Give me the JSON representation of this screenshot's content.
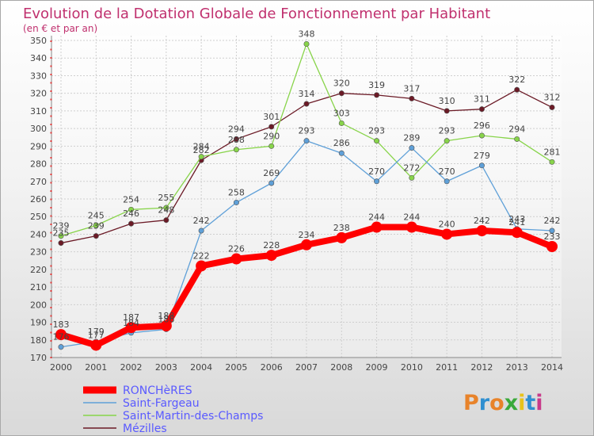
{
  "chart_data": {
    "type": "line",
    "title": "Evolution de la Dotation Globale de Fonctionnement par Habitant",
    "subtitle": "(en € et par an)",
    "x": [
      "2000",
      "2001",
      "2002",
      "2003",
      "2004",
      "2005",
      "2006",
      "2007",
      "2008",
      "2009",
      "2010",
      "2011",
      "2012",
      "2013",
      "2014"
    ],
    "ylim": [
      170,
      350
    ],
    "yticks": [
      170,
      180,
      190,
      200,
      210,
      220,
      230,
      240,
      250,
      260,
      270,
      280,
      290,
      300,
      310,
      320,
      330,
      340,
      350
    ],
    "grid": true,
    "series": [
      {
        "name": "RONCHèRES",
        "color": "#ff0000",
        "values": [
          183,
          177,
          187,
          188,
          222,
          226,
          228,
          234,
          238,
          244,
          244,
          240,
          242,
          241,
          233
        ]
      },
      {
        "name": "Saint-Fargeau",
        "color": "#5fa0d8",
        "values": [
          176,
          179,
          184,
          186,
          242,
          258,
          269,
          293,
          286,
          270,
          289,
          270,
          279,
          243,
          242
        ]
      },
      {
        "name": "Saint-Martin-des-Champs",
        "color": "#88d44a",
        "values": [
          239,
          245,
          254,
          255,
          284,
          288,
          290,
          348,
          303,
          293,
          272,
          293,
          296,
          294,
          281
        ]
      },
      {
        "name": "Mézilles",
        "color": "#6b1a26",
        "values": [
          235,
          239,
          246,
          248,
          282,
          294,
          301,
          314,
          320,
          319,
          317,
          310,
          311,
          322,
          312
        ]
      }
    ],
    "legend_position": "bottom-left"
  },
  "brand": {
    "text": "Proxiti"
  }
}
